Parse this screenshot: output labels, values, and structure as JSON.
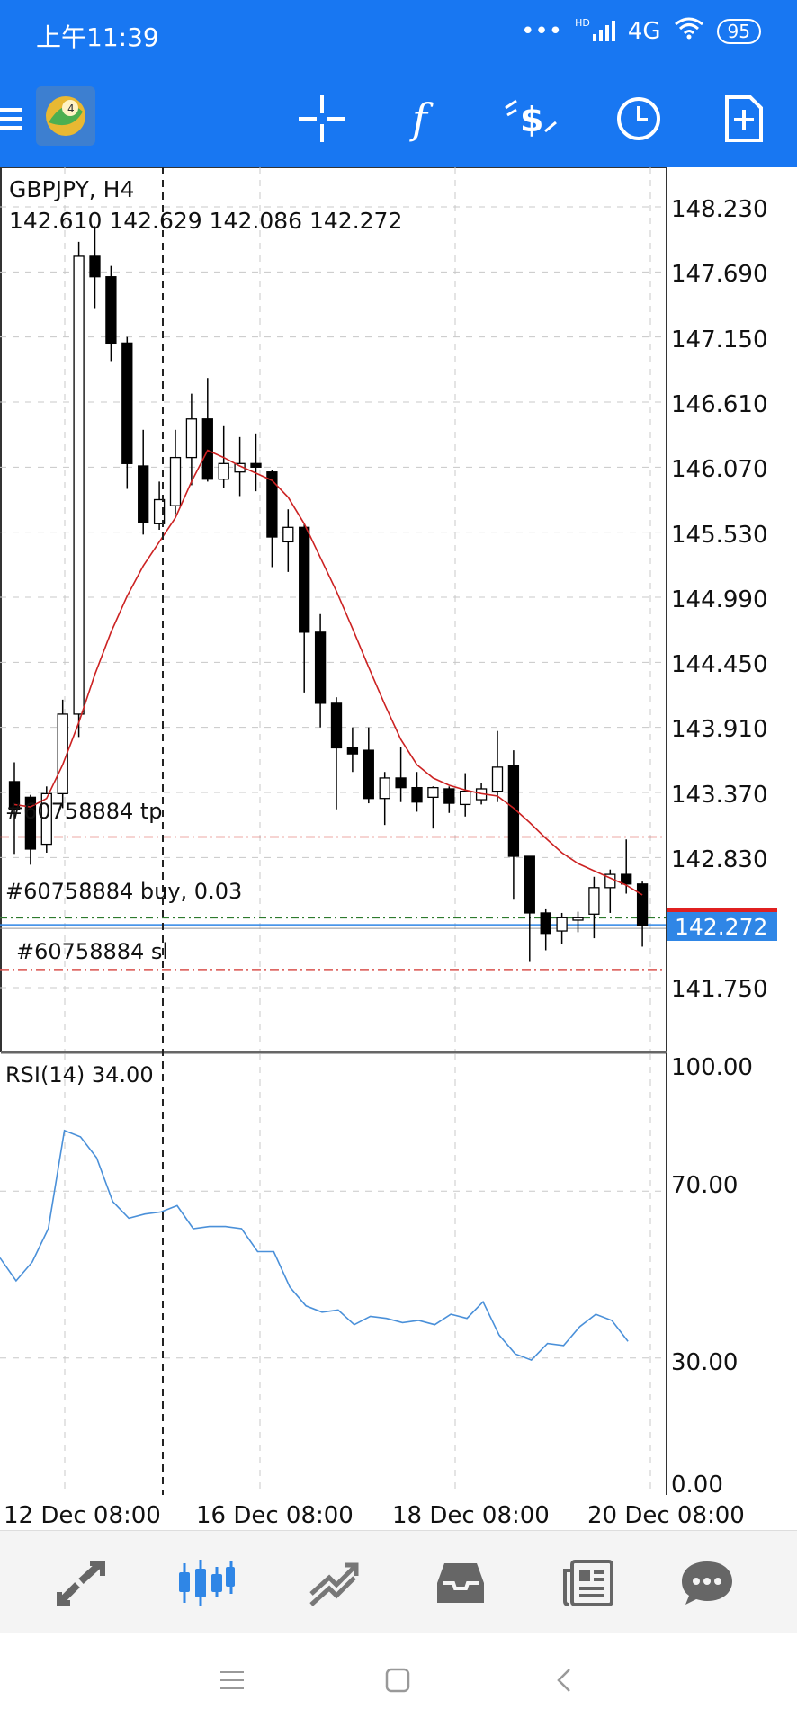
{
  "status_bar": {
    "time": "上午11:39",
    "dots": "•••",
    "signal_label": "HD",
    "network": "4G",
    "battery": "95"
  },
  "toolbar": {
    "icons": [
      "menu-icon",
      "metatrader-logo",
      "crosshair-icon",
      "function-icon",
      "trade-icon",
      "clock-icon",
      "new-chart-icon"
    ]
  },
  "chart": {
    "symbol_timeframe": "GBPJPY, H4",
    "ohlc": "142.610 142.629 142.086 142.272",
    "price_axis": [
      "148.230",
      "147.690",
      "147.150",
      "146.610",
      "146.070",
      "145.530",
      "144.990",
      "144.450",
      "143.910",
      "143.370",
      "142.830",
      "141.750"
    ],
    "current_price": "142.272",
    "tp_label": "#60758884 tp",
    "buy_label": "#60758884 buy, 0.03",
    "sl_label": "#60758884 sl",
    "rsi_label": "RSI(14) 34.00",
    "rsi_axis": [
      "100.00",
      "70.00",
      "30.00",
      "0.00"
    ],
    "time_axis": [
      "12 Dec 08:00",
      "16 Dec 08:00",
      "18 Dec 08:00",
      "20 Dec 08:00"
    ],
    "colors": {
      "bull_candle": "#ffffff",
      "bear_candle": "#000000",
      "moving_average": "#cc2222",
      "rsi_line": "#4a90d9",
      "current_price_tag": "#2f86e6",
      "tp_sl_line": "#d9534f"
    }
  },
  "chart_data": {
    "type": "candlestick",
    "candles": [
      {
        "o": 143.46,
        "h": 143.62,
        "l": 142.86,
        "c": 143.23
      },
      {
        "o": 143.33,
        "h": 143.35,
        "l": 142.77,
        "c": 142.9
      },
      {
        "o": 142.94,
        "h": 143.42,
        "l": 142.87,
        "c": 143.36
      },
      {
        "o": 143.36,
        "h": 144.14,
        "l": 143.24,
        "c": 144.02
      },
      {
        "o": 144.02,
        "h": 147.94,
        "l": 143.83,
        "c": 147.82
      },
      {
        "o": 147.82,
        "h": 148.07,
        "l": 147.39,
        "c": 147.65
      },
      {
        "o": 147.65,
        "h": 147.74,
        "l": 146.95,
        "c": 147.1
      },
      {
        "o": 147.1,
        "h": 147.15,
        "l": 145.89,
        "c": 146.1
      },
      {
        "o": 146.08,
        "h": 146.38,
        "l": 145.51,
        "c": 145.61
      },
      {
        "o": 145.6,
        "h": 145.95,
        "l": 145.55,
        "c": 145.8
      },
      {
        "o": 145.75,
        "h": 146.38,
        "l": 145.68,
        "c": 146.15
      },
      {
        "o": 146.15,
        "h": 146.68,
        "l": 145.92,
        "c": 146.47
      },
      {
        "o": 146.47,
        "h": 146.81,
        "l": 145.95,
        "c": 145.97
      },
      {
        "o": 145.97,
        "h": 146.41,
        "l": 145.9,
        "c": 146.1
      },
      {
        "o": 146.03,
        "h": 146.32,
        "l": 145.83,
        "c": 146.1
      },
      {
        "o": 146.1,
        "h": 146.35,
        "l": 145.87,
        "c": 146.07
      },
      {
        "o": 146.03,
        "h": 146.05,
        "l": 145.24,
        "c": 145.49
      },
      {
        "o": 145.45,
        "h": 145.72,
        "l": 145.2,
        "c": 145.57
      },
      {
        "o": 145.57,
        "h": 145.6,
        "l": 144.2,
        "c": 144.7
      },
      {
        "o": 144.7,
        "h": 144.85,
        "l": 143.91,
        "c": 144.11
      },
      {
        "o": 144.11,
        "h": 144.16,
        "l": 143.23,
        "c": 143.74
      },
      {
        "o": 143.74,
        "h": 143.91,
        "l": 143.54,
        "c": 143.69
      },
      {
        "o": 143.72,
        "h": 143.91,
        "l": 143.28,
        "c": 143.32
      },
      {
        "o": 143.32,
        "h": 143.54,
        "l": 143.1,
        "c": 143.49
      },
      {
        "o": 143.49,
        "h": 143.75,
        "l": 143.29,
        "c": 143.41
      },
      {
        "o": 143.41,
        "h": 143.54,
        "l": 143.21,
        "c": 143.29
      },
      {
        "o": 143.33,
        "h": 143.42,
        "l": 143.07,
        "c": 143.41
      },
      {
        "o": 143.4,
        "h": 143.42,
        "l": 143.2,
        "c": 143.28
      },
      {
        "o": 143.27,
        "h": 143.53,
        "l": 143.17,
        "c": 143.38
      },
      {
        "o": 143.31,
        "h": 143.45,
        "l": 143.27,
        "c": 143.4
      },
      {
        "o": 143.38,
        "h": 143.88,
        "l": 143.29,
        "c": 143.58
      },
      {
        "o": 143.59,
        "h": 143.72,
        "l": 142.48,
        "c": 142.84
      },
      {
        "o": 142.84,
        "h": 142.84,
        "l": 141.97,
        "c": 142.37
      },
      {
        "o": 142.37,
        "h": 142.4,
        "l": 142.06,
        "c": 142.2
      },
      {
        "o": 142.22,
        "h": 142.37,
        "l": 142.11,
        "c": 142.33
      },
      {
        "o": 142.31,
        "h": 142.38,
        "l": 142.21,
        "c": 142.33
      },
      {
        "o": 142.36,
        "h": 142.67,
        "l": 142.16,
        "c": 142.58
      },
      {
        "o": 142.58,
        "h": 142.73,
        "l": 142.37,
        "c": 142.69
      },
      {
        "o": 142.69,
        "h": 142.98,
        "l": 142.53,
        "c": 142.61
      },
      {
        "o": 142.61,
        "h": 142.63,
        "l": 142.09,
        "c": 142.27
      }
    ],
    "moving_average": [
      143.27,
      143.25,
      143.32,
      143.6,
      143.95,
      144.35,
      144.7,
      145.0,
      145.25,
      145.45,
      145.65,
      145.95,
      146.21,
      146.15,
      146.08,
      146.02,
      145.96,
      145.82,
      145.6,
      145.32,
      145.04,
      144.73,
      144.41,
      144.1,
      143.81,
      143.6,
      143.49,
      143.43,
      143.39,
      143.36,
      143.34,
      143.24,
      143.12,
      142.99,
      142.87,
      142.78,
      142.72,
      142.66,
      142.6,
      142.52
    ],
    "rsi": [
      54.0,
      48.5,
      53.0,
      61.0,
      84.5,
      83.0,
      78.0,
      67.5,
      63.5,
      64.5,
      65.0,
      66.5,
      61.0,
      61.5,
      61.5,
      61.0,
      55.5,
      55.5,
      47.0,
      42.5,
      41.0,
      41.5,
      38.0,
      40.0,
      39.5,
      38.5,
      39.0,
      38.0,
      40.5,
      39.5,
      43.5,
      35.5,
      31.0,
      29.5,
      33.5,
      33.0,
      37.5,
      40.5,
      39.0,
      34.0
    ],
    "price_range": [
      141.35,
      148.55
    ],
    "rsi_range": [
      0,
      100
    ],
    "tp": 143.0,
    "buy": 142.3,
    "sl": 141.9,
    "current": 142.272
  },
  "bottom_nav": {
    "icons": [
      "quotes-icon",
      "chart-icon",
      "trade-icon",
      "history-icon",
      "news-icon",
      "messages-icon"
    ]
  },
  "system_nav": {
    "icons": [
      "menu-nav-icon",
      "home-nav-icon",
      "back-nav-icon"
    ]
  }
}
